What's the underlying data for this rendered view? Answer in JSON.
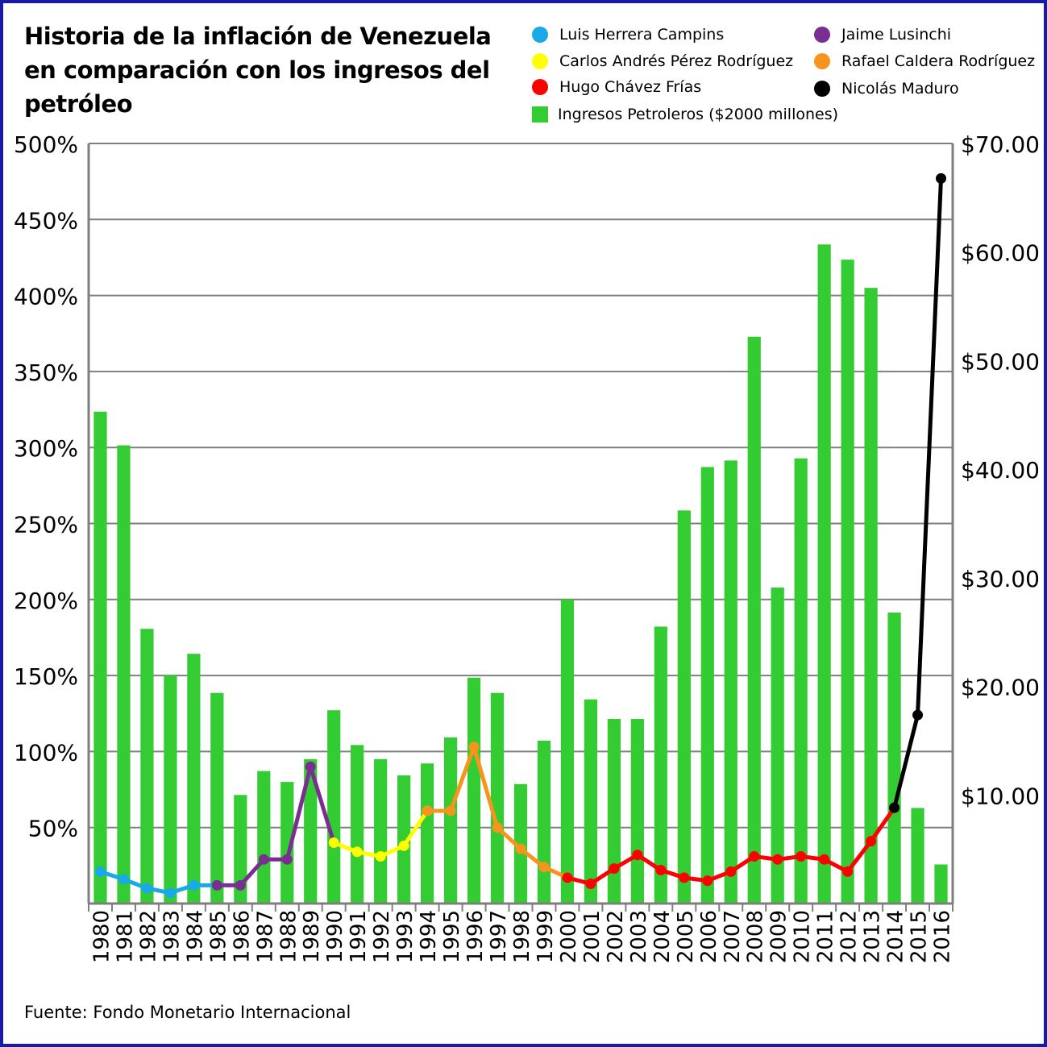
{
  "title": "Historia de la inflación de Venezuela en comparación con los ingresos del petróleo",
  "source": "Fuente: Fondo Monetario Internacional",
  "legend": [
    {
      "label": "Luis Herrera Campins",
      "color": "#1aa9e8",
      "shape": "circle"
    },
    {
      "label": "Jaime Lusinchi",
      "color": "#7a2e91",
      "shape": "circle"
    },
    {
      "label": "Carlos Andrés Pérez Rodríguez",
      "color": "#ffff00",
      "shape": "circle"
    },
    {
      "label": "Rafael Caldera Rodríguez",
      "color": "#f7941d",
      "shape": "circle"
    },
    {
      "label": "Hugo Chávez Frías",
      "color": "#ff0000",
      "shape": "circle"
    },
    {
      "label": "Nicolás Maduro",
      "color": "#000000",
      "shape": "circle"
    },
    {
      "label": "Ingresos Petroleros ($2000 millones)",
      "color": "#33cc33",
      "shape": "square"
    }
  ],
  "chart_data": {
    "type": "bar+line",
    "categories": [
      "1980",
      "1981",
      "1982",
      "1983",
      "1984",
      "1985",
      "1986",
      "1987",
      "1988",
      "1989",
      "1990",
      "1991",
      "1992",
      "1993",
      "1994",
      "1995",
      "1996",
      "1997",
      "1998",
      "1999",
      "2000",
      "2001",
      "2002",
      "2003",
      "2004",
      "2005",
      "2006",
      "2007",
      "2008",
      "2009",
      "2010",
      "2011",
      "2012",
      "2013",
      "2014",
      "2015",
      "2016"
    ],
    "left_axis": {
      "ticks": [
        "50%",
        "100%",
        "150%",
        "200%",
        "250%",
        "300%",
        "350%",
        "400%",
        "450%",
        "500%"
      ],
      "range": [
        0,
        500
      ]
    },
    "right_axis": {
      "ticks": [
        "$10.00",
        "$20.00",
        "$30.00",
        "$40.00",
        "$50.00",
        "$60.00",
        "$70.00"
      ],
      "range": [
        0,
        70
      ]
    },
    "bars": {
      "name": "Ingresos Petroleros ($2000 millones)",
      "color": "#33cc33",
      "values": [
        45.3,
        42.2,
        25.3,
        21.0,
        23.0,
        19.4,
        10.0,
        12.2,
        11.2,
        13.3,
        17.8,
        14.6,
        13.3,
        11.8,
        12.9,
        15.3,
        20.8,
        19.4,
        11.0,
        15.0,
        28.0,
        18.8,
        17.0,
        17.0,
        25.5,
        36.2,
        40.2,
        40.8,
        52.2,
        29.1,
        41.0,
        60.7,
        59.3,
        56.7,
        26.8,
        8.8,
        3.6
      ]
    },
    "series": [
      {
        "name": "Luis Herrera Campins",
        "color": "#1aa9e8",
        "x": [
          "1980",
          "1981",
          "1982",
          "1983",
          "1984",
          "1985"
        ],
        "values": [
          21,
          16,
          10,
          7,
          12,
          12
        ]
      },
      {
        "name": "Jaime Lusinchi",
        "color": "#7a2e91",
        "x": [
          "1985",
          "1986",
          "1987",
          "1988",
          "1989",
          "1990"
        ],
        "values": [
          12,
          12,
          29,
          29,
          90,
          40
        ]
      },
      {
        "name": "Carlos Andrés Pérez Rodríguez",
        "color": "#ffff00",
        "x": [
          "1990",
          "1991",
          "1992",
          "1993",
          "1994"
        ],
        "values": [
          40,
          34,
          31,
          38,
          61
        ]
      },
      {
        "name": "Rafael Caldera Rodríguez",
        "color": "#f7941d",
        "x": [
          "1994",
          "1995",
          "1996",
          "1997",
          "1998",
          "1999",
          "2000"
        ],
        "values": [
          61,
          61,
          103,
          50,
          36,
          24,
          17
        ]
      },
      {
        "name": "Hugo Chávez Frías",
        "color": "#ff0000",
        "x": [
          "2000",
          "2001",
          "2002",
          "2003",
          "2004",
          "2005",
          "2006",
          "2007",
          "2008",
          "2009",
          "2010",
          "2011",
          "2012",
          "2013",
          "2014"
        ],
        "values": [
          17,
          13,
          23,
          32,
          22,
          17,
          15,
          21,
          31,
          29,
          31,
          29,
          21,
          41,
          63
        ]
      },
      {
        "name": "Nicolás Maduro",
        "color": "#000000",
        "x": [
          "2014",
          "2015",
          "2016"
        ],
        "values": [
          63,
          124,
          477
        ]
      }
    ],
    "grid": true
  }
}
